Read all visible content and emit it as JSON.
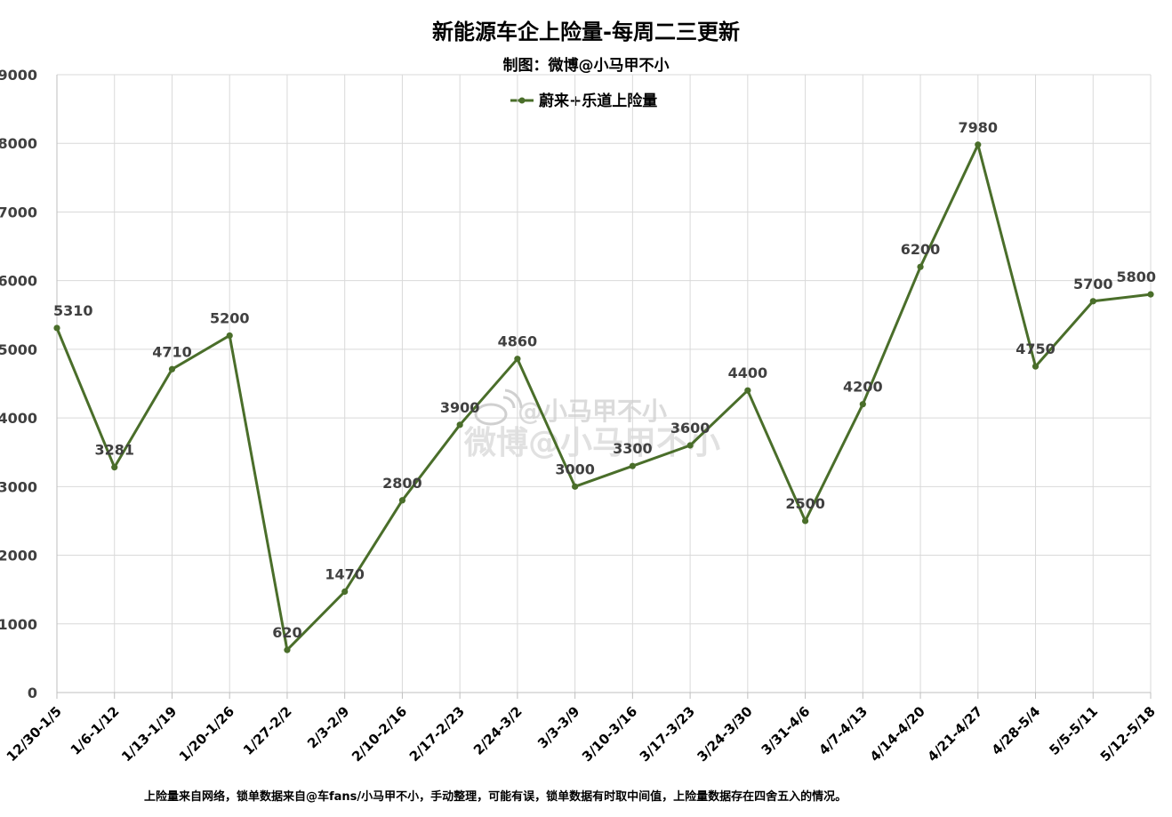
{
  "chart_data": {
    "type": "line",
    "title": "新能源车企上险量-每周二三更新",
    "subtitle": "制图：微博@小马甲不小",
    "categories": [
      "12/30-1/5",
      "1/6-1/12",
      "1/13-1/19",
      "1/20-1/26",
      "1/27-2/2",
      "2/3-2/9",
      "2/10-2/16",
      "2/17-2/23",
      "2/24-3/2",
      "3/3-3/9",
      "3/10-3/16",
      "3/17-3/23",
      "3/24-3/30",
      "3/31-4/6",
      "4/7-4/13",
      "4/14-4/20",
      "4/21-4/27",
      "4/28-5/4",
      "5/5-5/11",
      "5/12-5/18"
    ],
    "series": [
      {
        "name": "蔚来+乐道上险量",
        "values": [
          5310,
          3281,
          4710,
          5200,
          620,
          1470,
          2800,
          3900,
          4860,
          3000,
          3300,
          3600,
          4400,
          2500,
          4200,
          6200,
          7980,
          4750,
          5700,
          5800
        ]
      }
    ],
    "ylim": [
      0,
      9000
    ],
    "yticks": [
      0,
      1000,
      2000,
      3000,
      4000,
      5000,
      6000,
      7000,
      8000,
      9000
    ],
    "xlabel": "",
    "ylabel": "",
    "grid": true,
    "legend_position": "top-center",
    "colors": {
      "line": "#4a6e2a",
      "grid": "#d9d9d9"
    },
    "footnote": "上险量来自网络，锁单数据来自@车fans/小马甲不小，手动整理，可能有误，锁单数据有时取中间值，上险量数据存在四舍五入的情况。",
    "watermark": {
      "line1": "@小马甲不小",
      "line2": "微博@小马甲不小",
      "icon": "weibo-icon"
    }
  }
}
